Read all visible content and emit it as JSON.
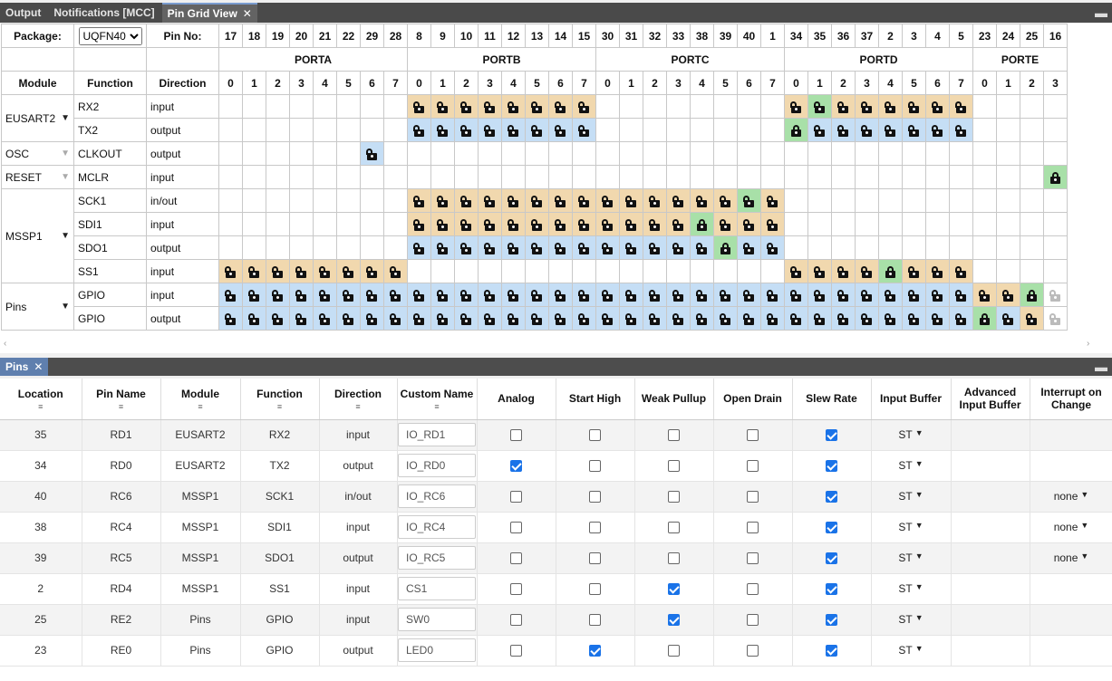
{
  "tabs_top": [
    {
      "label": "Output"
    },
    {
      "label": "Notifications [MCC]"
    },
    {
      "label": "Pin Grid View"
    }
  ],
  "minimize_icon": "minimize-icon",
  "grid": {
    "package_label": "Package:",
    "package_value": "UQFN40",
    "pin_no_label": "Pin No:",
    "pin_numbers": [
      "17",
      "18",
      "19",
      "20",
      "21",
      "22",
      "29",
      "28",
      "8",
      "9",
      "10",
      "11",
      "12",
      "13",
      "14",
      "15",
      "30",
      "31",
      "32",
      "33",
      "38",
      "39",
      "40",
      "1",
      "34",
      "35",
      "36",
      "37",
      "2",
      "3",
      "4",
      "5",
      "23",
      "24",
      "25",
      "16"
    ],
    "ports": [
      {
        "name": "PORTA",
        "span": 8
      },
      {
        "name": "PORTB",
        "span": 8
      },
      {
        "name": "PORTC",
        "span": 8
      },
      {
        "name": "PORTD",
        "span": 8
      },
      {
        "name": "PORTE",
        "span": 4
      }
    ],
    "bits": [
      "0",
      "1",
      "2",
      "3",
      "4",
      "5",
      "6",
      "7",
      "0",
      "1",
      "2",
      "3",
      "4",
      "5",
      "6",
      "7",
      "0",
      "1",
      "2",
      "3",
      "4",
      "5",
      "6",
      "7",
      "0",
      "1",
      "2",
      "3",
      "4",
      "5",
      "6",
      "7",
      "0",
      "1",
      "2",
      "3"
    ],
    "col_module": "Module",
    "col_function": "Function",
    "col_direction": "Direction",
    "rows": [
      {
        "module": "EUSART2",
        "arrow": "dark",
        "mspan": 2,
        "function": "RX2",
        "direction": "input",
        "cells": "........oooooooo........ogoooooo...."
      },
      {
        "function": "TX2",
        "direction": "output",
        "cells": "........bbbbbbbb........Gbbbbbbb...."
      },
      {
        "module": "OSC",
        "arrow": "dim",
        "mspan": 1,
        "function": "CLKOUT",
        "direction": "output",
        "cells": "......b............................."
      },
      {
        "module": "RESET",
        "arrow": "dim",
        "mspan": 1,
        "function": "MCLR",
        "direction": "input",
        "cells": "...................................G"
      },
      {
        "module": "MSSP1",
        "arrow": "dark",
        "mspan": 4,
        "function": "SCK1",
        "direction": "in/out",
        "cells": "........oooooooooooooogo............"
      },
      {
        "function": "SDI1",
        "direction": "input",
        "cells": "........ooooooooooooGooo............"
      },
      {
        "function": "SDO1",
        "direction": "output",
        "cells": "........bbbbbbbbbbbbbGbb............"
      },
      {
        "function": "SS1",
        "direction": "input",
        "cells": "oooooooo................ooooGooo...."
      },
      {
        "module": "Pins",
        "arrow": "dark",
        "mspan": 2,
        "function": "GPIO",
        "direction": "input",
        "cells": "bbbbbbbbbbbbbbbbbbbbbbbbbbbbbbbbooGf"
      },
      {
        "function": "GPIO",
        "direction": "output",
        "cells": "bbbbbbbbbbbbbbbbbbbbbbbbbbbbbbbbGbof"
      }
    ]
  },
  "pins_tab": {
    "label": "Pins"
  },
  "pins_table": {
    "headers": [
      "Location",
      "Pin Name",
      "Module",
      "Function",
      "Direction",
      "Custom Name",
      "Analog",
      "Start High",
      "Weak Pullup",
      "Open Drain",
      "Slew Rate",
      "Input Buffer",
      "Advanced Input Buffer",
      "Interrupt on Change"
    ],
    "rows": [
      {
        "location": "35",
        "pin_name": "RD1",
        "module": "EUSART2",
        "function": "RX2",
        "direction": "input",
        "custom": "IO_RD1",
        "analog": false,
        "start_high": false,
        "weak_pullup": false,
        "open_drain": false,
        "slew_rate": true,
        "input_buffer": "ST",
        "ioc": ""
      },
      {
        "location": "34",
        "pin_name": "RD0",
        "module": "EUSART2",
        "function": "TX2",
        "direction": "output",
        "custom": "IO_RD0",
        "analog": true,
        "start_high": false,
        "weak_pullup": false,
        "open_drain": false,
        "slew_rate": true,
        "input_buffer": "ST",
        "ioc": ""
      },
      {
        "location": "40",
        "pin_name": "RC6",
        "module": "MSSP1",
        "function": "SCK1",
        "direction": "in/out",
        "custom": "IO_RC6",
        "analog": false,
        "start_high": false,
        "weak_pullup": false,
        "open_drain": false,
        "slew_rate": true,
        "input_buffer": "ST",
        "ioc": "none"
      },
      {
        "location": "38",
        "pin_name": "RC4",
        "module": "MSSP1",
        "function": "SDI1",
        "direction": "input",
        "custom": "IO_RC4",
        "analog": false,
        "start_high": false,
        "weak_pullup": false,
        "open_drain": false,
        "slew_rate": true,
        "input_buffer": "ST",
        "ioc": "none"
      },
      {
        "location": "39",
        "pin_name": "RC5",
        "module": "MSSP1",
        "function": "SDO1",
        "direction": "output",
        "custom": "IO_RC5",
        "analog": false,
        "start_high": false,
        "weak_pullup": false,
        "open_drain": false,
        "slew_rate": true,
        "input_buffer": "ST",
        "ioc": "none"
      },
      {
        "location": "2",
        "pin_name": "RD4",
        "module": "MSSP1",
        "function": "SS1",
        "direction": "input",
        "custom": "CS1",
        "analog": false,
        "start_high": false,
        "weak_pullup": true,
        "open_drain": false,
        "slew_rate": true,
        "input_buffer": "ST",
        "ioc": ""
      },
      {
        "location": "25",
        "pin_name": "RE2",
        "module": "Pins",
        "function": "GPIO",
        "direction": "input",
        "custom": "SW0",
        "analog": false,
        "start_high": false,
        "weak_pullup": true,
        "open_drain": false,
        "slew_rate": true,
        "input_buffer": "ST",
        "ioc": ""
      },
      {
        "location": "23",
        "pin_name": "RE0",
        "module": "Pins",
        "function": "GPIO",
        "direction": "output",
        "custom": "LED0",
        "analog": false,
        "start_high": true,
        "weak_pullup": false,
        "open_drain": false,
        "slew_rate": true,
        "input_buffer": "ST",
        "ioc": ""
      }
    ]
  },
  "colors": {
    "orange": "#f1d8ae",
    "blue": "#c5def5",
    "green": "#a8e0a8",
    "checkbox": "#1a73e8"
  }
}
